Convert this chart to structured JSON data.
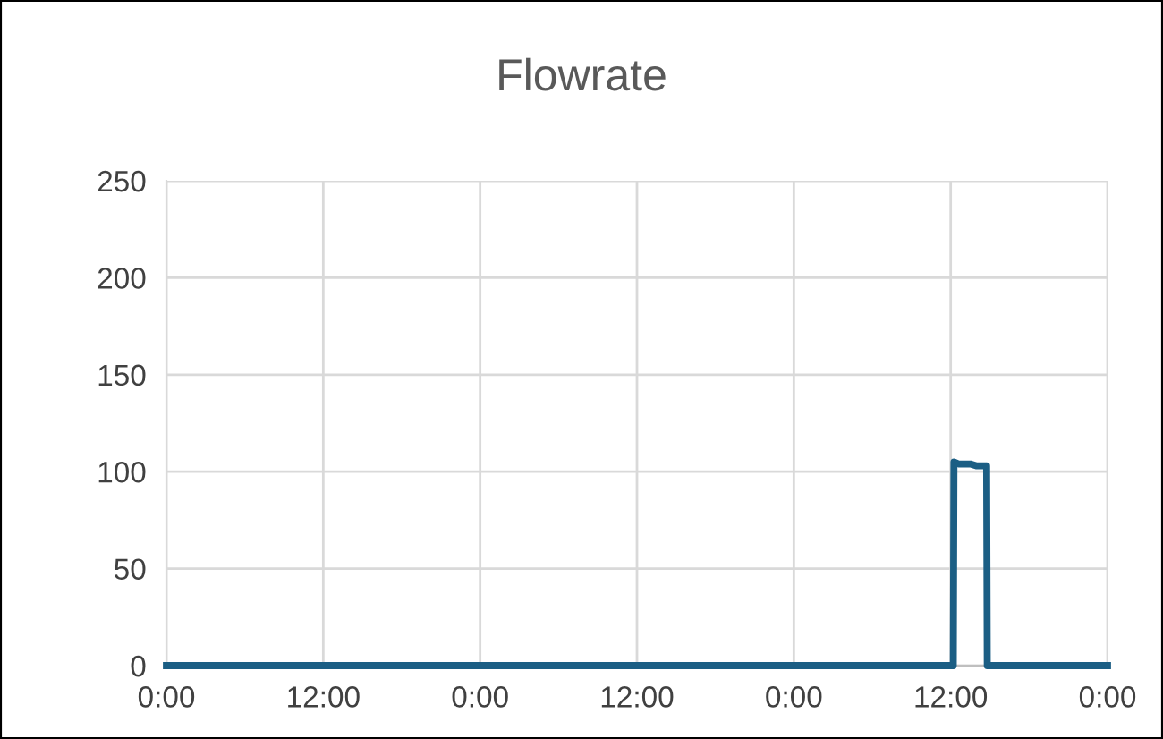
{
  "chart_data": {
    "type": "line",
    "title": "Flowrate",
    "series": [
      {
        "color": "#1b5e84",
        "x": [
          "2000-01-01T00:00",
          "2000-01-03T12:12",
          "2000-01-03T12:15",
          "2000-01-03T12:36",
          "2000-01-03T13:00",
          "2000-01-03T13:30",
          "2000-01-03T14:00",
          "2000-01-03T14:30",
          "2000-01-03T14:45",
          "2000-01-03T14:48",
          "2000-01-04T00:00"
        ],
        "values": [
          0,
          0,
          105,
          104,
          104,
          104,
          103,
          103,
          103,
          0,
          0
        ]
      }
    ],
    "xlim": [
      "2000-01-01T00:00",
      "2000-01-04T00:00"
    ],
    "xticks": [
      {
        "value": "2000-01-01T00:00",
        "label": "0:00"
      },
      {
        "value": "2000-01-01T12:00",
        "label": "12:00"
      },
      {
        "value": "2000-01-02T00:00",
        "label": "0:00"
      },
      {
        "value": "2000-01-02T12:00",
        "label": "12:00"
      },
      {
        "value": "2000-01-03T00:00",
        "label": "0:00"
      },
      {
        "value": "2000-01-03T12:00",
        "label": "12:00"
      },
      {
        "value": "2000-01-04T00:00",
        "label": "0:00"
      }
    ],
    "ylim": [
      0,
      250
    ],
    "yticks": [
      0,
      50,
      100,
      150,
      200,
      250
    ],
    "grid": true,
    "marker": "none",
    "line_style": "solid"
  }
}
